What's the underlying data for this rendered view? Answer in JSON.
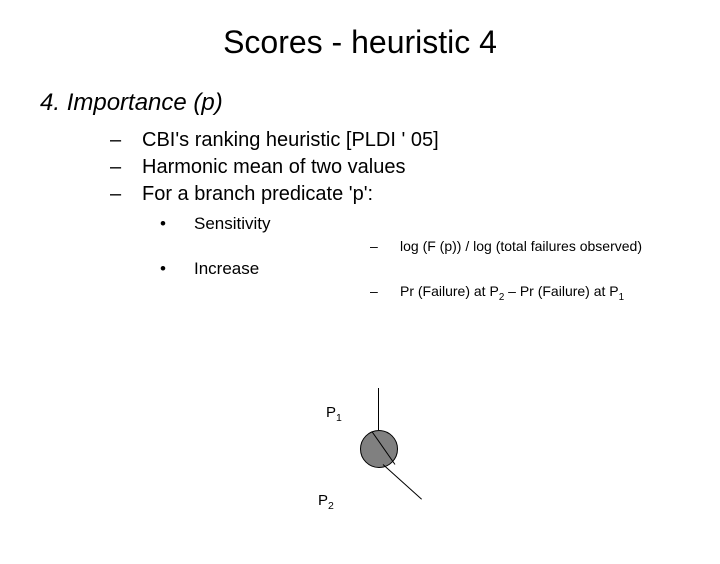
{
  "title": "Scores - heuristic 4",
  "item": {
    "number": "4.",
    "label": "Importance (p)"
  },
  "subitems": [
    "CBI's ranking heuristic [PLDI ' 05]",
    "Harmonic mean of two values",
    "For a branch predicate 'p':"
  ],
  "bullets": [
    {
      "label": "Sensitivity",
      "formula_prefix": "log (F (p)) / log (total failures observed)"
    },
    {
      "label": "Increase",
      "formula_prefix": "Pr (Failure) at P",
      "sub1": "2",
      "mid": " – Pr (Failure) at P",
      "sub2": "1"
    }
  ],
  "diagram": {
    "p1": {
      "label": "P",
      "sub": "1"
    },
    "p2": {
      "label": "P",
      "sub": "2"
    },
    "node_fill": "#808080",
    "node_border": "#000000",
    "line_color": "#000000"
  },
  "colors": {
    "background": "#ffffff",
    "text": "#000000"
  },
  "typography": {
    "title_fontsize": 32,
    "item_fontsize": 24,
    "sub_fontsize": 20,
    "bullet_fontsize": 17,
    "formula_fontsize": 14,
    "diagram_label_fontsize": 15,
    "font_family": "Arial"
  }
}
